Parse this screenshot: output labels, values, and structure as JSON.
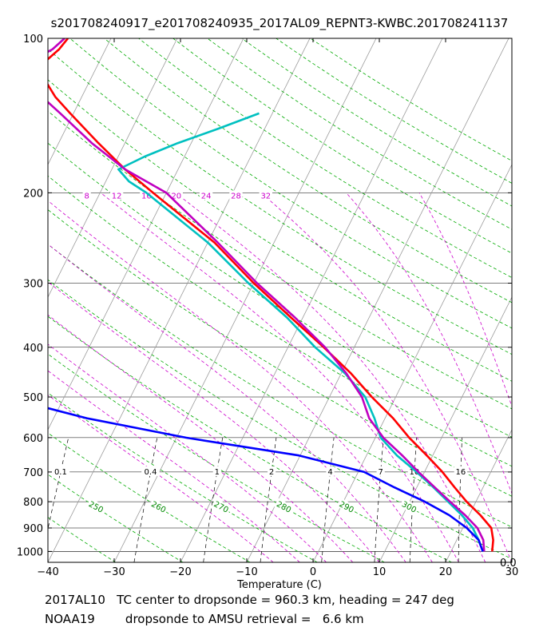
{
  "chart_data": {
    "type": "line",
    "title": "s201708240917_e201708240935_2017AL09_REPNT3-KWBC.201708241137",
    "xlabel": "Temperature (C)",
    "ylabel": "",
    "xlim": [
      -40,
      30
    ],
    "ylim": [
      1050,
      100
    ],
    "y_scale": "log",
    "skew": true,
    "x_ticks": [
      -40,
      -30,
      -20,
      -10,
      0,
      10,
      20,
      30
    ],
    "x_tick_labels": [
      "−40",
      "−30",
      "−20",
      "−10",
      "0",
      "10",
      "20",
      "30"
    ],
    "y_ticks": [
      1000,
      900,
      800,
      700,
      600,
      500,
      400,
      300,
      200,
      100
    ],
    "y_tick_labels": [
      "1000",
      "900",
      "800",
      "700",
      "600",
      "500",
      "400",
      "300",
      "200",
      "100"
    ],
    "corner_label": "0.0",
    "mixing_ratio_labels": [
      "0.1",
      "0.4",
      "1",
      "2",
      "4",
      "7",
      "10",
      "16"
    ],
    "theta_labels": [
      "250",
      "260",
      "270",
      "280",
      "290",
      "300"
    ],
    "theta_e_labels": [
      "8",
      "12",
      "16",
      "20",
      "24",
      "28",
      "32"
    ],
    "series": [
      {
        "color": "#ff0000",
        "p": [
          1000,
          950,
          900,
          850,
          800,
          750,
          700,
          650,
          600,
          550,
          500,
          450,
          400,
          350,
          300,
          250,
          200,
          180,
          160,
          140,
          130,
          120,
          110,
          105,
          100
        ],
        "t": [
          26.2,
          25.5,
          24.3,
          21.7,
          18.6,
          15.7,
          12.7,
          9.1,
          5.1,
          1.2,
          -3.6,
          -8.5,
          -14.6,
          -21.8,
          -30.0,
          -39.0,
          -52.0,
          -58.0,
          -64.0,
          -70.5,
          -74.0,
          -77.0,
          -78.0,
          -77.0,
          -76.5
        ]
      },
      {
        "color": "#00c0c0",
        "p": [
          1000,
          950,
          900,
          850,
          800,
          750,
          700,
          650,
          600,
          550,
          500,
          450,
          400,
          350,
          300,
          250,
          200,
          190,
          180,
          170,
          160,
          150,
          140
        ],
        "t": [
          24.8,
          23.3,
          21.5,
          18.9,
          15.8,
          12.5,
          8.8,
          4.6,
          0.8,
          -1.6,
          -4.6,
          -9.4,
          -15.9,
          -22.4,
          -30.8,
          -40.0,
          -53.0,
          -56.5,
          -59.0,
          -56.0,
          -52.0,
          -47.0,
          -42.0
        ]
      },
      {
        "color": "#c000c0",
        "p": [
          1000,
          950,
          900,
          850,
          800,
          750,
          700,
          650,
          600,
          550,
          500,
          450,
          400,
          350,
          300,
          250,
          200,
          180,
          160,
          140,
          130,
          120,
          110,
          105,
          100
        ],
        "t": [
          25.0,
          24.0,
          22.2,
          19.4,
          16.1,
          12.7,
          9.1,
          5.4,
          1.2,
          -2.4,
          -5.1,
          -9.2,
          -14.4,
          -21.2,
          -29.5,
          -38.5,
          -50.0,
          -58.0,
          -65.0,
          -72.0,
          -76.0,
          -80.0,
          -80.0,
          -78.0,
          -77.0
        ]
      },
      {
        "color": "#0000ff",
        "p": [
          1000,
          950,
          900,
          850,
          800,
          750,
          700,
          650,
          600,
          550,
          500,
          470,
          430,
          400,
          350,
          300,
          250,
          200,
          150,
          120,
          100
        ],
        "t": [
          24.8,
          23.3,
          20.6,
          17.0,
          12.3,
          6.6,
          0.9,
          -10.2,
          -28.6,
          -45.0,
          -59.0,
          -63.0,
          -67.5,
          -67.5,
          -66.5,
          -67.5,
          -70.5,
          -75.5,
          -84.0,
          -90.0,
          -92.5
        ]
      }
    ]
  },
  "footer": {
    "line1": "2017AL10   TC center to dropsonde = 960.3 km, heading = 247 deg",
    "line2": "NOAA19        dropsonde to AMSU retrieval =   6.6 km"
  }
}
